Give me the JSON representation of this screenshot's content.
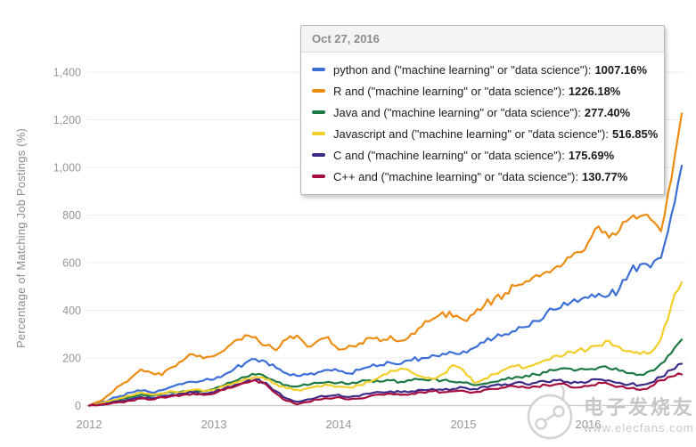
{
  "chart": {
    "y_axis_title": "Percentage of Matching Job Postings (%)",
    "y_tick_labels": [
      "0",
      "200",
      "400",
      "600",
      "800",
      "1,000",
      "1,200",
      "1,400"
    ],
    "x_tick_labels": [
      "2012",
      "2013",
      "2014",
      "2015",
      "2016"
    ]
  },
  "tooltip": {
    "date": "Oct 27, 2016",
    "items": [
      {
        "id": "python",
        "label": "python and (\"machine learning\" or \"data science\")",
        "value": "1007.16%",
        "color": "#3d6fd6"
      },
      {
        "id": "r",
        "label": "R and (\"machine learning\" or \"data science\")",
        "value": "1226.18%",
        "color": "#ec8d13"
      },
      {
        "id": "java",
        "label": "Java and (\"machine learning\" or \"data science\")",
        "value": "277.40%",
        "color": "#1e7a44"
      },
      {
        "id": "javascript",
        "label": "Javascript and (\"machine learning\" or \"data science\")",
        "value": "516.85%",
        "color": "#f2ce28"
      },
      {
        "id": "c",
        "label": "C and (\"machine learning\" or \"data science\")",
        "value": "175.69%",
        "color": "#3f2b87"
      },
      {
        "id": "cpp",
        "label": "C++ and (\"machine learning\" or \"data science\")",
        "value": "130.77%",
        "color": "#a60f3f"
      }
    ]
  },
  "watermark": {
    "name": "电子发烧友",
    "url": "www.elecfans.com"
  },
  "chart_data": {
    "type": "line",
    "title": "",
    "xlabel": "",
    "ylabel": "Percentage of Matching Job Postings (%)",
    "x_unit": "month",
    "x_start": "2012-01",
    "x_end": "2016-10",
    "ylim": [
      0,
      1400
    ],
    "grid": true,
    "legend_position": "tooltip-overlay",
    "y_ticks": [
      0,
      200,
      400,
      600,
      800,
      1000,
      1200,
      1400
    ],
    "x_tick_months": [
      0,
      12,
      24,
      36,
      48
    ],
    "series": [
      {
        "id": "python",
        "name": "python and (\"machine learning\" or \"data science\")",
        "color": "#3d6fd6",
        "values": [
          0,
          10,
          25,
          40,
          55,
          62,
          55,
          65,
          80,
          90,
          100,
          105,
          110,
          130,
          155,
          178,
          195,
          185,
          158,
          135,
          125,
          130,
          140,
          150,
          145,
          135,
          150,
          163,
          170,
          180,
          175,
          190,
          200,
          212,
          218,
          222,
          228,
          242,
          265,
          285,
          300,
          312,
          330,
          355,
          390,
          405,
          422,
          435,
          452,
          470,
          462,
          490,
          560,
          592,
          580,
          620,
          800,
          1007.16
        ]
      },
      {
        "id": "r",
        "name": "R and (\"machine learning\" or \"data science\")",
        "color": "#ec8d13",
        "values": [
          0,
          18,
          48,
          85,
          115,
          152,
          138,
          128,
          162,
          188,
          215,
          198,
          208,
          232,
          272,
          295,
          288,
          252,
          232,
          278,
          295,
          248,
          272,
          288,
          235,
          252,
          262,
          285,
          270,
          292,
          272,
          302,
          332,
          362,
          392,
          372,
          360,
          385,
          420,
          452,
          472,
          502,
          522,
          548,
          562,
          585,
          622,
          645,
          685,
          752,
          705,
          735,
          785,
          795,
          782,
          732,
          950,
          1226.18
        ]
      },
      {
        "id": "java",
        "name": "Java and (\"machine learning\" or \"data science\")",
        "color": "#1e7a44",
        "values": [
          0,
          6,
          15,
          26,
          36,
          46,
          40,
          50,
          56,
          60,
          66,
          60,
          70,
          86,
          102,
          120,
          130,
          120,
          100,
          86,
          80,
          86,
          95,
          100,
          96,
          90,
          100,
          106,
          100,
          106,
          100,
          106,
          110,
          112,
          106,
          100,
          96,
          86,
          92,
          100,
          110,
          120,
          126,
          130,
          140,
          150,
          156,
          150,
          152,
          160,
          156,
          146,
          136,
          130,
          146,
          176,
          220,
          277.4
        ]
      },
      {
        "id": "javascript",
        "name": "Javascript and (\"machine learning\" or \"data science\")",
        "color": "#f2ce28",
        "values": [
          0,
          8,
          20,
          32,
          42,
          56,
          46,
          52,
          60,
          56,
          66,
          60,
          66,
          82,
          96,
          112,
          120,
          110,
          90,
          72,
          66,
          72,
          82,
          86,
          80,
          76,
          86,
          100,
          122,
          146,
          156,
          140,
          122,
          112,
          132,
          170,
          148,
          96,
          112,
          132,
          152,
          166,
          160,
          176,
          192,
          210,
          226,
          232,
          236,
          252,
          272,
          246,
          230,
          216,
          222,
          280,
          420,
          516.85
        ]
      },
      {
        "id": "c",
        "name": "C and (\"machine learning\" or \"data science\")",
        "color": "#3f2b87",
        "values": [
          0,
          4,
          10,
          18,
          26,
          36,
          30,
          40,
          46,
          50,
          56,
          50,
          56,
          72,
          86,
          100,
          110,
          96,
          60,
          30,
          16,
          26,
          36,
          40,
          46,
          36,
          40,
          50,
          56,
          60,
          56,
          60,
          66,
          70,
          66,
          70,
          76,
          70,
          80,
          86,
          90,
          96,
          90,
          96,
          100,
          106,
          100,
          96,
          100,
          110,
          106,
          96,
          90,
          86,
          96,
          120,
          150,
          175.69
        ]
      },
      {
        "id": "cpp",
        "name": "C++ and (\"machine learning\" or \"data science\")",
        "color": "#a60f3f",
        "values": [
          0,
          2,
          8,
          15,
          21,
          30,
          25,
          35,
          40,
          45,
          50,
          45,
          50,
          66,
          80,
          96,
          106,
          90,
          50,
          20,
          5,
          15,
          25,
          30,
          36,
          26,
          30,
          40,
          46,
          50,
          45,
          50,
          56,
          60,
          56,
          60,
          62,
          56,
          66,
          70,
          76,
          80,
          75,
          80,
          86,
          90,
          86,
          76,
          82,
          96,
          90,
          80,
          72,
          66,
          80,
          106,
          122,
          130.77
        ]
      }
    ]
  }
}
